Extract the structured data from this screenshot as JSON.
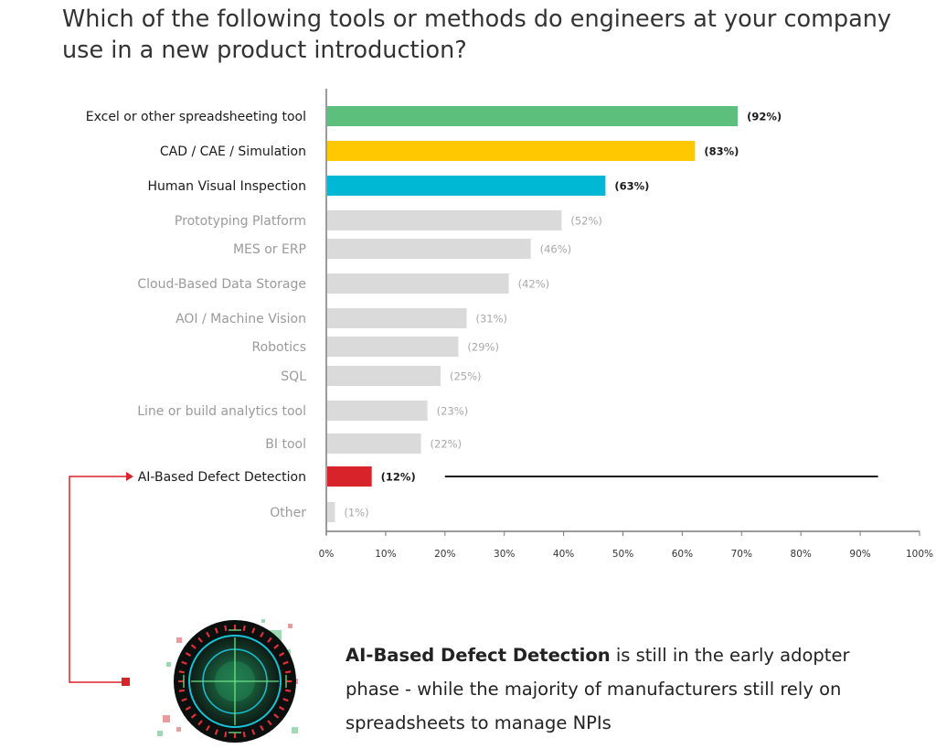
{
  "title": "Which of the following tools or methods do engineers at your company use in a new product introduction?",
  "chart_data": {
    "type": "bar",
    "orientation": "horizontal",
    "categories": [
      "Excel or other spreadsheeting tool",
      "CAD / CAE / Simulation",
      "Human Visual Inspection",
      "Prototyping Platform",
      "MES or ERP",
      "Cloud-Based Data Storage",
      "AOI / Machine Vision",
      "Robotics",
      "SQL",
      "Line or build analytics tool",
      "BI tool",
      "AI-Based Defect Detection",
      "Other"
    ],
    "values": [
      92,
      83,
      63,
      52,
      46,
      42,
      31,
      29,
      25,
      23,
      22,
      12,
      1
    ],
    "value_labels": [
      "(92%)",
      "(83%)",
      "(63%)",
      "(52%)",
      "(46%)",
      "(42%)",
      "(31%)",
      "(29%)",
      "(25%)",
      "(23%)",
      "(22%)",
      "(12%)",
      "(1%)"
    ],
    "bar_lengths_percent_of_axis": [
      69.2,
      62,
      46.9,
      39.5,
      34.3,
      30.6,
      23.5,
      22.1,
      19.1,
      16.9,
      15.8,
      7.5,
      1.3
    ],
    "highlight": [
      true,
      true,
      true,
      false,
      false,
      false,
      false,
      false,
      false,
      false,
      false,
      true,
      false
    ],
    "colors": [
      "#5cbf7c",
      "#ffc800",
      "#00b8d4",
      "#dadada",
      "#dadada",
      "#dadada",
      "#dadada",
      "#dadada",
      "#dadada",
      "#dadada",
      "#dadada",
      "#d9232a",
      "#dadada"
    ],
    "label_colors": [
      "#1a1a1a",
      "#1a1a1a",
      "#1a1a1a",
      "#9a9a9a",
      "#9a9a9a",
      "#9a9a9a",
      "#9a9a9a",
      "#9a9a9a",
      "#9a9a9a",
      "#9a9a9a",
      "#9a9a9a",
      "#1a1a1a",
      "#9a9a9a"
    ],
    "x_ticks": [
      "0%",
      "10%",
      "20%",
      "30%",
      "40%",
      "50%",
      "60%",
      "70%",
      "80%",
      "90%",
      "100%"
    ],
    "xlim": [
      0,
      100
    ],
    "reference_line": {
      "from": 20,
      "to": 93,
      "row": "AI-Based Defect Detection"
    },
    "grid": false
  },
  "callout": {
    "bold": "AI-Based Defect Detection",
    "text": " is still in the early adopter phase - while the majority of manufacturers still rely on spreadsheets to manage NPIs"
  },
  "accent_red": "#d9232a"
}
